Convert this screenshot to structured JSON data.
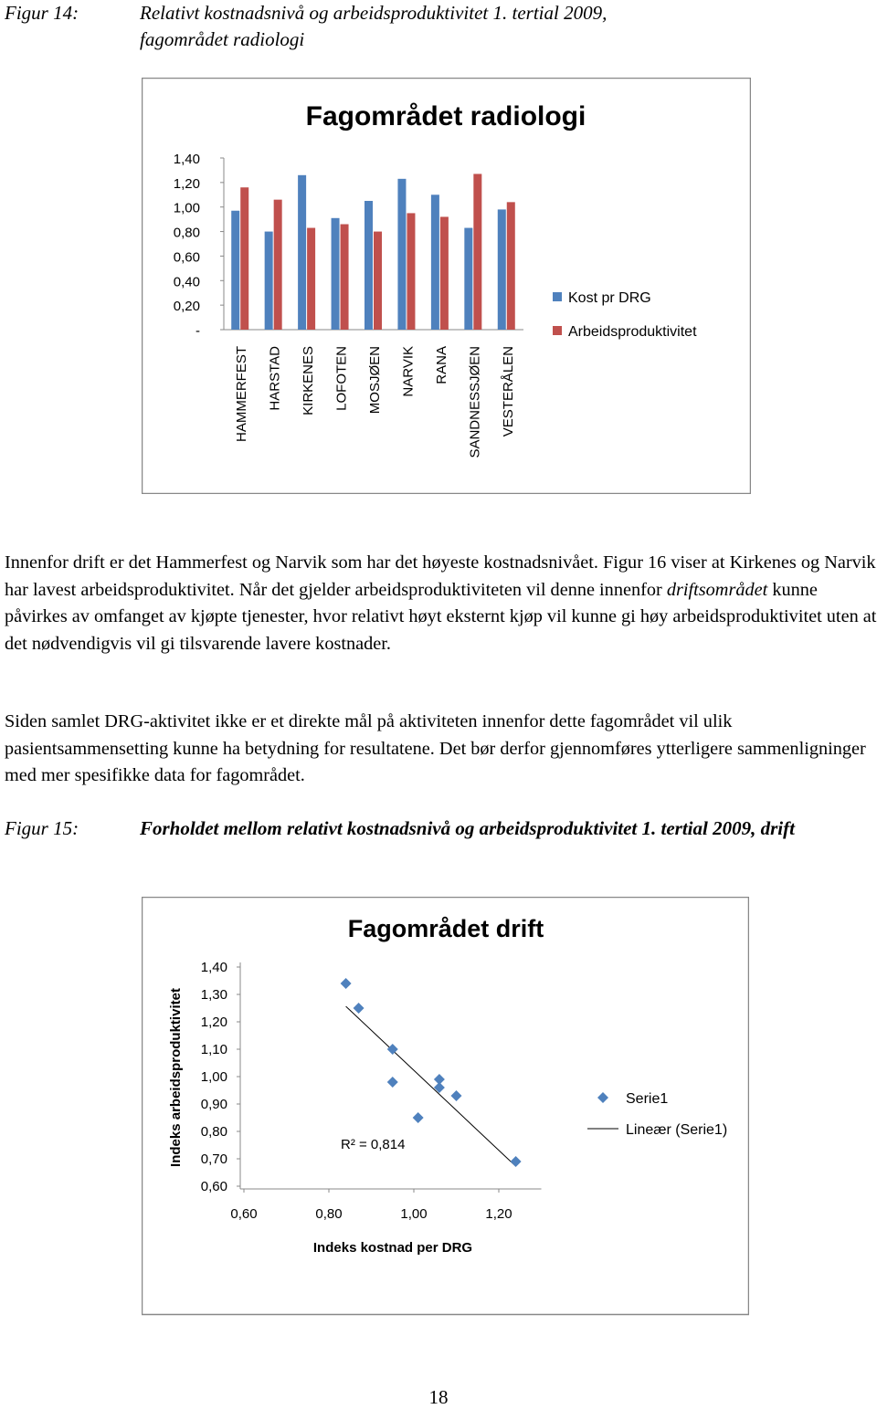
{
  "figure14": {
    "label": "Figur 14:",
    "caption": "Relativt kostnadsnivå og arbeidsproduktivitet 1. tertial 2009, fagområdet radiologi"
  },
  "paragraphs": [
    [
      "Innenfor drift er det Hammerfest og Narvik som har det høyeste kostnadsnivået. Figur 16 viser at Kirkenes og Narvik har lavest arbeidsproduktivitet. Når det gjelder arbeidsproduktiviteten vil denne innenfor ",
      "driftsområdet",
      " kunne påvirkes av omfanget av kjøpte tjenester, hvor relativt høyt eksternt kjøp vil kunne gi høy arbeidsproduktivitet uten at det nødvendigvis vil gi tilsvarende lavere kostnader."
    ],
    [
      "Siden samlet DRG-aktivitet ikke er et direkte mål på aktiviteten innenfor dette fagområdet vil ulik pasientsammensetting kunne ha betydning for resultatene. Det bør derfor gjennomføres ytterligere sammenligninger med mer spesifikke data for fagområdet."
    ]
  ],
  "figure15": {
    "label": "Figur 15:",
    "caption": "Forholdet mellom relativt kostnadsnivå og arbeidsproduktivitet 1. tertial 2009, drift"
  },
  "page_number": "18",
  "chart_data": [
    {
      "type": "bar",
      "title": "Fagområdet radiologi",
      "categories": [
        "HAMMERFEST",
        "HARSTAD",
        "KIRKENES",
        "LOFOTEN",
        "MOSJØEN",
        "NARVIK",
        "RANA",
        "SANDNESSJØEN",
        "VESTERÅLEN"
      ],
      "series": [
        {
          "name": "Kost pr DRG",
          "color": "#4f81bd",
          "values": [
            0.97,
            0.8,
            1.26,
            0.91,
            1.05,
            1.23,
            1.1,
            0.83,
            0.98
          ]
        },
        {
          "name": "Arbeidsproduktivitet",
          "color": "#c0504d",
          "values": [
            1.16,
            1.06,
            0.83,
            0.86,
            0.8,
            0.95,
            0.92,
            1.27,
            1.04
          ]
        }
      ],
      "ylim": [
        0,
        1.4
      ],
      "yticks": [
        {
          "value": 0,
          "label": "-"
        },
        {
          "value": 0.2,
          "label": "0,20"
        },
        {
          "value": 0.4,
          "label": "0,40"
        },
        {
          "value": 0.6,
          "label": "0,60"
        },
        {
          "value": 0.8,
          "label": "0,80"
        },
        {
          "value": 1.0,
          "label": "1,00"
        },
        {
          "value": 1.2,
          "label": "1,20"
        },
        {
          "value": 1.4,
          "label": "1,40"
        }
      ],
      "legend": "right"
    },
    {
      "type": "scatter",
      "title": "Fagområdet drift",
      "xlabel": "Indeks kostnad per DRG",
      "ylabel": "Indeks arbeidsproduktivitet",
      "series": [
        {
          "name": "Serie1",
          "color": "#4f81bd",
          "x": [
            0.84,
            0.87,
            0.95,
            0.95,
            1.01,
            1.06,
            1.06,
            1.1,
            1.24
          ],
          "values": [
            1.34,
            1.25,
            1.1,
            0.98,
            0.85,
            0.99,
            0.96,
            0.93,
            0.69
          ]
        }
      ],
      "trendline": {
        "name": "Lineær (Serie1)",
        "color": "#000000",
        "annotation": "R² = 0,814"
      },
      "xlim": [
        0.6,
        1.3
      ],
      "xticks": [
        {
          "value": 0.6,
          "label": "0,60"
        },
        {
          "value": 0.8,
          "label": "0,80"
        },
        {
          "value": 1.0,
          "label": "1,00"
        },
        {
          "value": 1.2,
          "label": "1,20"
        }
      ],
      "ylim": [
        0.6,
        1.4
      ],
      "yticks": [
        {
          "value": 0.6,
          "label": "0,60"
        },
        {
          "value": 0.7,
          "label": "0,70"
        },
        {
          "value": 0.8,
          "label": "0,80"
        },
        {
          "value": 0.9,
          "label": "0,90"
        },
        {
          "value": 1.0,
          "label": "1,00"
        },
        {
          "value": 1.1,
          "label": "1,10"
        },
        {
          "value": 1.2,
          "label": "1,20"
        },
        {
          "value": 1.3,
          "label": "1,30"
        },
        {
          "value": 1.4,
          "label": "1,40"
        }
      ],
      "legend": "right"
    }
  ]
}
